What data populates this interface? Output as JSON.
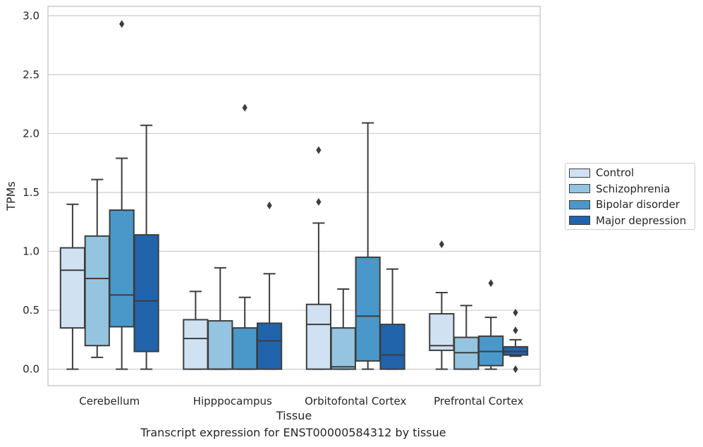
{
  "chart_data": {
    "type": "box",
    "xlabel": "Tissue",
    "ylabel": "TPMs",
    "caption": "Transcript expression for ENST00000584312 by tissue",
    "ylim": [
      -0.14,
      3.08
    ],
    "yticks": [
      "0.0",
      "0.5",
      "1.0",
      "1.5",
      "2.0",
      "2.5",
      "3.0"
    ],
    "grid": "horizontal",
    "legend_position": "right",
    "categories": [
      "Cerebellum",
      "Hipppocampus",
      "Orbitofontal Cortex",
      "Prefrontal Cortex"
    ],
    "series": [
      {
        "name": "Control",
        "color": "#d0e1f2",
        "boxes": [
          {
            "whislo": 0.0,
            "q1": 0.35,
            "median": 0.84,
            "q3": 1.03,
            "whishi": 1.4,
            "fliers": []
          },
          {
            "whislo": 0.0,
            "q1": 0.0,
            "median": 0.26,
            "q3": 0.42,
            "whishi": 0.66,
            "fliers": []
          },
          {
            "whislo": 0.0,
            "q1": 0.0,
            "median": 0.38,
            "q3": 0.55,
            "whishi": 1.24,
            "fliers": [
              1.42,
              1.86
            ]
          },
          {
            "whislo": 0.0,
            "q1": 0.16,
            "median": 0.2,
            "q3": 0.47,
            "whishi": 0.65,
            "fliers": [
              1.06
            ]
          }
        ]
      },
      {
        "name": "Schizophrenia",
        "color": "#94c4df",
        "boxes": [
          {
            "whislo": 0.1,
            "q1": 0.2,
            "median": 0.77,
            "q3": 1.13,
            "whishi": 1.61,
            "fliers": []
          },
          {
            "whislo": 0.0,
            "q1": 0.0,
            "median": 0.0,
            "q3": 0.41,
            "whishi": 0.86,
            "fliers": []
          },
          {
            "whislo": 0.0,
            "q1": 0.0,
            "median": 0.02,
            "q3": 0.35,
            "whishi": 0.68,
            "fliers": []
          },
          {
            "whislo": 0.0,
            "q1": 0.0,
            "median": 0.14,
            "q3": 0.27,
            "whishi": 0.54,
            "fliers": []
          }
        ]
      },
      {
        "name": "Bipolar disorder",
        "color": "#4a98c9",
        "boxes": [
          {
            "whislo": 0.0,
            "q1": 0.36,
            "median": 0.63,
            "q3": 1.35,
            "whishi": 1.79,
            "fliers": [
              2.93
            ]
          },
          {
            "whislo": 0.0,
            "q1": 0.0,
            "median": 0.0,
            "q3": 0.35,
            "whishi": 0.61,
            "fliers": [
              2.22
            ]
          },
          {
            "whislo": 0.0,
            "q1": 0.07,
            "median": 0.45,
            "q3": 0.95,
            "whishi": 2.09,
            "fliers": []
          },
          {
            "whislo": 0.0,
            "q1": 0.03,
            "median": 0.15,
            "q3": 0.28,
            "whishi": 0.44,
            "fliers": [
              0.73
            ]
          }
        ]
      },
      {
        "name": "Major depression",
        "color": "#2164ab",
        "boxes": [
          {
            "whislo": 0.0,
            "q1": 0.15,
            "median": 0.58,
            "q3": 1.14,
            "whishi": 2.07,
            "fliers": []
          },
          {
            "whislo": 0.0,
            "q1": 0.0,
            "median": 0.24,
            "q3": 0.39,
            "whishi": 0.81,
            "fliers": [
              1.39
            ]
          },
          {
            "whislo": 0.0,
            "q1": 0.0,
            "median": 0.12,
            "q3": 0.38,
            "whishi": 0.85,
            "fliers": []
          },
          {
            "whislo": 0.11,
            "q1": 0.12,
            "median": 0.15,
            "q3": 0.19,
            "whishi": 0.25,
            "fliers": [
              0.0,
              0.33,
              0.48
            ]
          }
        ]
      }
    ]
  }
}
